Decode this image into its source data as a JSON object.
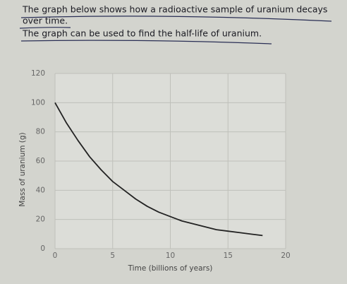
{
  "intro": [
    "The graph below shows how a radioactive sample of uranium decays",
    "over time.",
    "The graph can be used to find the half-life of uranium."
  ],
  "chart_data": {
    "type": "line",
    "xlabel": "Time (billions of years)",
    "ylabel": "Mass of uranium (g)",
    "x": [
      0,
      1,
      2,
      3,
      4,
      5,
      6,
      7,
      8,
      9,
      10,
      11,
      12,
      13,
      14,
      15,
      16,
      17,
      18
    ],
    "values": [
      100,
      86,
      74,
      63,
      54,
      46,
      40,
      34,
      29,
      25,
      22,
      19,
      17,
      15,
      13,
      12,
      11,
      10,
      9
    ],
    "color": "#222222",
    "xlim": [
      0,
      20
    ],
    "xticks": [
      0,
      5,
      10,
      15,
      20
    ],
    "ylim": [
      0,
      120
    ],
    "yticks": [
      0,
      20,
      40,
      60,
      80,
      100,
      120
    ],
    "grid": true
  }
}
